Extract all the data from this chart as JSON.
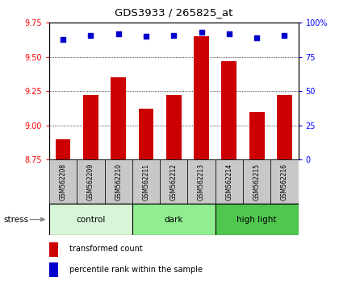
{
  "title": "GDS3933 / 265825_at",
  "samples": [
    "GSM562208",
    "GSM562209",
    "GSM562210",
    "GSM562211",
    "GSM562212",
    "GSM562213",
    "GSM562214",
    "GSM562215",
    "GSM562216"
  ],
  "bar_values": [
    8.9,
    9.22,
    9.35,
    9.12,
    9.22,
    9.65,
    9.47,
    9.1,
    9.22
  ],
  "dot_values": [
    88,
    91,
    92,
    90,
    91,
    93,
    92,
    89,
    91
  ],
  "groups": [
    {
      "label": "control",
      "start": 0,
      "end": 3,
      "color": "#d8f5d8"
    },
    {
      "label": "dark",
      "start": 3,
      "end": 6,
      "color": "#90ee90"
    },
    {
      "label": "high light",
      "start": 6,
      "end": 9,
      "color": "#50c850"
    }
  ],
  "ylim_left": [
    8.75,
    9.75
  ],
  "ylim_right": [
    0,
    100
  ],
  "yticks_left": [
    8.75,
    9.0,
    9.25,
    9.5,
    9.75
  ],
  "yticks_right": [
    0,
    25,
    50,
    75,
    100
  ],
  "bar_color": "#cc0000",
  "dot_color": "#0000cc",
  "bar_bottom": 8.75,
  "background_color": "#ffffff",
  "stress_label": "stress",
  "legend_items": [
    "transformed count",
    "percentile rank within the sample"
  ],
  "sample_box_color": "#c8c8c8",
  "figsize": [
    4.2,
    3.54
  ],
  "dpi": 100
}
